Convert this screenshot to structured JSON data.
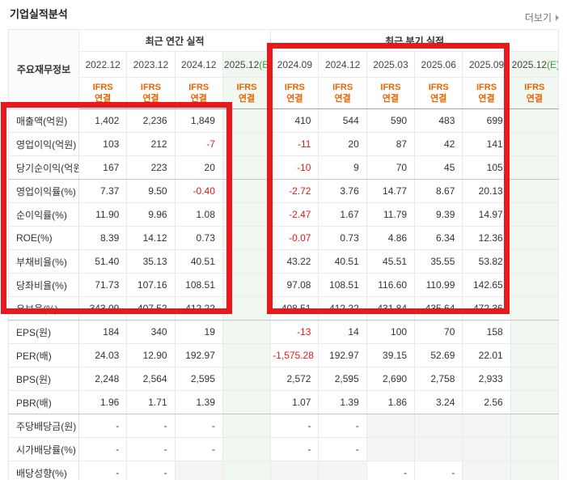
{
  "page": {
    "title": "기업실적분석",
    "more_label": "더보기"
  },
  "colors": {
    "ifrs_orange": "#ec6300",
    "estimate_green": "#33a333",
    "estimate_bg": "#f1f7f1",
    "negative_red": "#e0191c",
    "empty_gray": "#f5f5f5",
    "annotation_red": "#e8191d"
  },
  "table": {
    "corner_header": "주요재무정보",
    "ifrs_label": [
      "IFRS",
      "연결"
    ],
    "estimate_suffix": "(E)",
    "groups": [
      {
        "label": "최근 연간 실적",
        "span": 4
      },
      {
        "label": "최근 분기 실적",
        "span": 6
      }
    ],
    "columns": [
      {
        "period": "2022.12",
        "estimate": false
      },
      {
        "period": "2023.12",
        "estimate": false
      },
      {
        "period": "2024.12",
        "estimate": false
      },
      {
        "period": "2025.12",
        "estimate": true
      },
      {
        "period": "2024.09",
        "estimate": false
      },
      {
        "period": "2024.12",
        "estimate": false
      },
      {
        "period": "2025.03",
        "estimate": false
      },
      {
        "period": "2025.06",
        "estimate": false
      },
      {
        "period": "2025.09",
        "estimate": false
      },
      {
        "period": "2025.12",
        "estimate": true
      }
    ],
    "rows": [
      {
        "label": "매출액(억원)",
        "cells": [
          "1,402",
          "2,236",
          "1,849",
          "",
          "410",
          "544",
          "590",
          "483",
          "699",
          ""
        ]
      },
      {
        "label": "영업이익(억원)",
        "cells": [
          "103",
          "212",
          "-7",
          "",
          "-11",
          "20",
          "87",
          "42",
          "141",
          ""
        ]
      },
      {
        "label": "당기순이익(억원)",
        "cells": [
          "167",
          "223",
          "20",
          "",
          "-10",
          "9",
          "70",
          "45",
          "105",
          ""
        ],
        "section_end": true
      },
      {
        "label": "영업이익률(%)",
        "cells": [
          "7.37",
          "9.50",
          "-0.40",
          "",
          "-2.72",
          "3.76",
          "14.77",
          "8.67",
          "20.13",
          ""
        ]
      },
      {
        "label": "순이익률(%)",
        "cells": [
          "11.90",
          "9.96",
          "1.08",
          "",
          "-2.47",
          "1.67",
          "11.79",
          "9.39",
          "14.97",
          ""
        ]
      },
      {
        "label": "ROE(%)",
        "cells": [
          "8.39",
          "14.12",
          "0.73",
          "",
          "-0.07",
          "0.73",
          "4.86",
          "6.34",
          "12.36",
          ""
        ]
      },
      {
        "label": "부채비율(%)",
        "cells": [
          "51.40",
          "35.13",
          "40.51",
          "",
          "43.22",
          "40.51",
          "45.51",
          "35.55",
          "53.82",
          ""
        ]
      },
      {
        "label": "당좌비율(%)",
        "cells": [
          "71.73",
          "107.16",
          "108.51",
          "",
          "97.08",
          "108.51",
          "116.60",
          "110.99",
          "142.65",
          ""
        ]
      },
      {
        "label": "유보율(%)",
        "cells": [
          "343.09",
          "407.52",
          "412.22",
          "",
          "408.51",
          "412.22",
          "431.84",
          "435.64",
          "472.36",
          ""
        ],
        "section_end": true
      },
      {
        "label": "EPS(원)",
        "cells": [
          "184",
          "340",
          "19",
          "",
          "-13",
          "14",
          "100",
          "70",
          "158",
          ""
        ]
      },
      {
        "label": "PER(배)",
        "cells": [
          "24.03",
          "12.90",
          "192.97",
          "",
          "-1,575.28",
          "192.97",
          "39.15",
          "52.69",
          "22.01",
          ""
        ]
      },
      {
        "label": "BPS(원)",
        "cells": [
          "2,248",
          "2,564",
          "2,595",
          "",
          "2,572",
          "2,595",
          "2,690",
          "2,758",
          "2,933",
          ""
        ]
      },
      {
        "label": "PBR(배)",
        "cells": [
          "1.96",
          "1.71",
          "1.39",
          "",
          "1.07",
          "1.39",
          "1.86",
          "3.24",
          "2.56",
          ""
        ],
        "section_end": true
      },
      {
        "label": "주당배당금(원)",
        "cells": [
          "-",
          "-",
          "-",
          "",
          "-",
          "-",
          null,
          null,
          null,
          ""
        ]
      },
      {
        "label": "시가배당률(%)",
        "cells": [
          "-",
          "-",
          "-",
          "",
          "-",
          "-",
          null,
          null,
          null,
          ""
        ]
      },
      {
        "label": "배당성향(%)",
        "cells": [
          "-",
          "-",
          null,
          "",
          null,
          null,
          "-",
          "-",
          null,
          ""
        ]
      }
    ]
  },
  "annotations": [
    {
      "name": "annual-results-highlight"
    },
    {
      "name": "quarterly-results-highlight"
    }
  ]
}
